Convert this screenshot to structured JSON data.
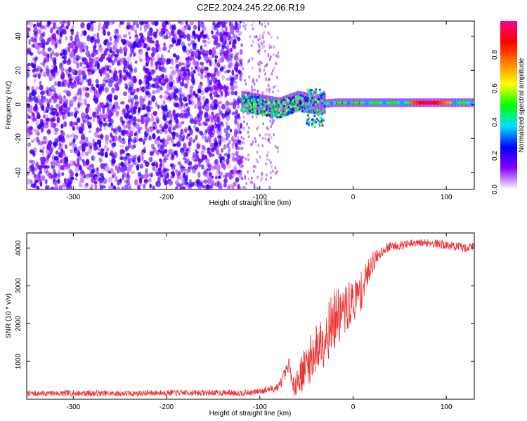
{
  "figure_title": "C2E2.2024.245.22.06.R19",
  "chart_data": [
    {
      "type": "heatmap",
      "xlabel": "Height of straight line (km)",
      "ylabel": "Frequency (Hz)",
      "xlim": [
        -350,
        130
      ],
      "ylim": [
        -50,
        49
      ],
      "xticks": [
        -300,
        -200,
        -100,
        0,
        100
      ],
      "yticks": [
        -40,
        -20,
        0,
        20,
        40
      ],
      "colorbar": {
        "label": "Normalized spectral amplitude",
        "range": [
          0.0,
          1.0
        ],
        "ticks": [
          "0.0",
          "0.2",
          "0.4",
          "0.6",
          "0.8"
        ],
        "colors": [
          "#ffffff",
          "#8800ff",
          "#0000ff",
          "#00e0ff",
          "#00ff00",
          "#ffff00",
          "#ff8000",
          "#ff0000",
          "#ff0088"
        ]
      },
      "regions": [
        {
          "x": [
            -350,
            -120
          ],
          "freq": [
            -50,
            49
          ],
          "amplitude": 0.15,
          "pattern": "noise"
        },
        {
          "x": [
            -120,
            -30
          ],
          "freq": [
            -20,
            8
          ],
          "amplitude": 0.35,
          "pattern": "scattered tone"
        },
        {
          "x": [
            -30,
            130
          ],
          "freq": [
            0,
            2
          ],
          "amplitude": 0.85,
          "pattern": "carrier line"
        }
      ],
      "carrier_line": {
        "x": [
          -120,
          -80,
          -60,
          -40,
          -20,
          0,
          20,
          60,
          100,
          130
        ],
        "freq": [
          2,
          -2,
          2,
          0,
          1,
          1,
          1,
          1,
          1,
          1
        ]
      }
    },
    {
      "type": "line",
      "xlabel": "Height of straight line (km)",
      "ylabel": "SNR (10 * v/v)",
      "xlim": [
        -350,
        130
      ],
      "ylim": [
        0,
        4400
      ],
      "xticks": [
        -300,
        -200,
        -100,
        0,
        100
      ],
      "yticks": [
        1000,
        2000,
        3000,
        4000
      ],
      "series": [
        {
          "color": "#ee3333",
          "x": [
            -350,
            -300,
            -250,
            -200,
            -150,
            -110,
            -100,
            -90,
            -80,
            -70,
            -68,
            -65,
            -60,
            -50,
            -40,
            -30,
            -20,
            -10,
            0,
            10,
            15,
            20,
            30,
            40,
            60,
            80,
            100,
            120,
            130
          ],
          "y": [
            150,
            160,
            150,
            170,
            170,
            170,
            220,
            260,
            320,
            800,
            1000,
            300,
            500,
            900,
            1300,
            1700,
            2100,
            2300,
            2600,
            2900,
            3300,
            3600,
            3900,
            4050,
            4100,
            4150,
            4080,
            4000,
            4050
          ],
          "noise": [
            80,
            80,
            80,
            80,
            80,
            80,
            90,
            100,
            120,
            200,
            200,
            200,
            400,
            600,
            700,
            800,
            800,
            700,
            600,
            500,
            400,
            300,
            150,
            120,
            120,
            120,
            120,
            120,
            120
          ]
        }
      ]
    }
  ]
}
